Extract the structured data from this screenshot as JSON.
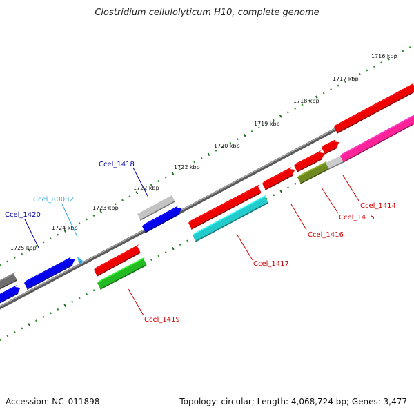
{
  "title": "Clostridium cellulolyticum H10, complete genome",
  "footer": {
    "accession": "Accession: NC_011898",
    "summary": "Topology: circular; Length: 4,068,724 bp; Genes: 3,477"
  },
  "colors": {
    "background": "#ffffff",
    "backbone": "#7f7f7f",
    "tick_major": "#1f6b1f",
    "tick_minor": "#2e8b2e",
    "label_red": "#cc0000",
    "label_blue": "#0000aa",
    "label_cyan": "#33aadd",
    "label_dark": "#111111"
  },
  "ruler_labels": [
    "1716 kbp",
    "1717 kbp",
    "1718 kbp",
    "1719 kbp",
    "1720 kbp",
    "1721 kbp",
    "1722 kbp",
    "1723 kbp",
    "1724 kbp",
    "1725 kbp"
  ],
  "genes": [
    {
      "id": "Ccel_1414",
      "color": "#cc0000"
    },
    {
      "id": "Ccel_1415",
      "color": "#cc0000"
    },
    {
      "id": "Ccel_1416",
      "color": "#cc0000"
    },
    {
      "id": "Ccel_1417",
      "color": "#cc0000"
    },
    {
      "id": "Ccel_1418",
      "color": "#0000aa"
    },
    {
      "id": "Ccel_1419",
      "color": "#cc0000"
    },
    {
      "id": "Ccel_1420",
      "color": "#0000aa"
    },
    {
      "id": "Ccel_R0032",
      "color": "#33aadd"
    }
  ]
}
